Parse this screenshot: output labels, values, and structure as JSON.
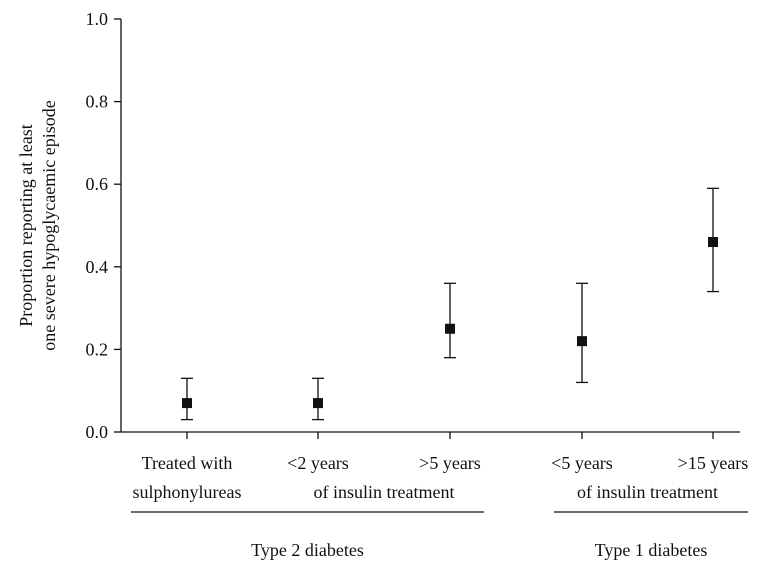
{
  "chart_data": {
    "type": "scatter",
    "ylabel_lines": [
      "Proportion reporting at least",
      "one severe hypoglycaemic episode"
    ],
    "ylim": [
      0.0,
      1.0
    ],
    "yticks": [
      {
        "value": 0.0,
        "label": "0.0"
      },
      {
        "value": 0.2,
        "label": "0.2"
      },
      {
        "value": 0.4,
        "label": "0.4"
      },
      {
        "value": 0.6,
        "label": "0.6"
      },
      {
        "value": 0.8,
        "label": "0.8"
      },
      {
        "value": 1.0,
        "label": "1.0"
      }
    ],
    "categories": [
      {
        "line1": "Treated with",
        "line2": "sulphonylureas"
      },
      {
        "line1": "<2 years",
        "line2": ""
      },
      {
        "line1": ">5 years",
        "line2": ""
      },
      {
        "line1": "<5 years",
        "line2": ""
      },
      {
        "line1": ">15 years",
        "line2": ""
      }
    ],
    "points": [
      {
        "category": "Treated with sulphonylureas",
        "value": 0.07,
        "lower": 0.03,
        "upper": 0.13
      },
      {
        "category": "<2 years",
        "value": 0.07,
        "lower": 0.03,
        "upper": 0.13
      },
      {
        "category": ">5 years",
        "value": 0.25,
        "lower": 0.18,
        "upper": 0.36
      },
      {
        "category": "<5 years",
        "value": 0.22,
        "lower": 0.12,
        "upper": 0.36
      },
      {
        "category": ">15 years",
        "value": 0.46,
        "lower": 0.34,
        "upper": 0.59
      }
    ],
    "subgroup_labels": [
      {
        "text": "of insulin treatment",
        "spans": [
          1,
          2
        ]
      },
      {
        "text": "of insulin treatment",
        "spans": [
          3,
          4
        ]
      }
    ],
    "group_labels": [
      {
        "text": "Type 2 diabetes",
        "spans": [
          0,
          2
        ]
      },
      {
        "text": "Type 1 diabetes",
        "spans": [
          3,
          4
        ]
      }
    ],
    "grid": false
  }
}
